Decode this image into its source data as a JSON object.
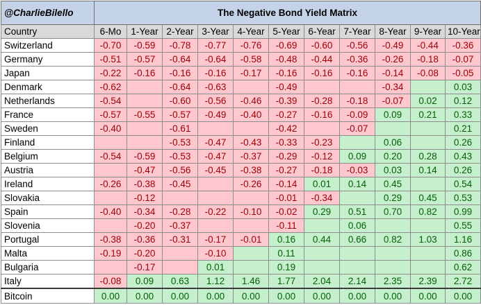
{
  "handle": "@CharlieBilello",
  "title": "The Negative Bond Yield Matrix",
  "colors": {
    "title_band": "#c5d3e8",
    "header_band": "#d9d9d9",
    "negative_fill": "#ffc7ce",
    "negative_text": "#9c0006",
    "positive_fill": "#c6efce",
    "positive_text": "#006100"
  },
  "columns": [
    "Country",
    "6-Mo",
    "1-Year",
    "2-Year",
    "3-Year",
    "4-Year",
    "5-Year",
    "6-Year",
    "7-Year",
    "8-Year",
    "9-Year",
    "10-Year"
  ],
  "rows": [
    {
      "country": "Switzerland",
      "values": [
        "-0.70",
        "-0.59",
        "-0.78",
        "-0.77",
        "-0.76",
        "-0.69",
        "-0.60",
        "-0.56",
        "-0.49",
        "-0.44",
        "-0.36"
      ],
      "fill": [
        "n",
        "n",
        "n",
        "n",
        "n",
        "n",
        "n",
        "n",
        "n",
        "n",
        "n"
      ]
    },
    {
      "country": "Germany",
      "values": [
        "-0.51",
        "-0.57",
        "-0.64",
        "-0.64",
        "-0.58",
        "-0.48",
        "-0.44",
        "-0.36",
        "-0.26",
        "-0.18",
        "-0.07"
      ],
      "fill": [
        "n",
        "n",
        "n",
        "n",
        "n",
        "n",
        "n",
        "n",
        "n",
        "n",
        "n"
      ]
    },
    {
      "country": "Japan",
      "values": [
        "-0.22",
        "-0.16",
        "-0.16",
        "-0.16",
        "-0.17",
        "-0.16",
        "-0.16",
        "-0.16",
        "-0.14",
        "-0.08",
        "-0.05"
      ],
      "fill": [
        "n",
        "n",
        "n",
        "n",
        "n",
        "n",
        "n",
        "n",
        "n",
        "n",
        "n"
      ]
    },
    {
      "country": "Denmark",
      "values": [
        "-0.62",
        "",
        "-0.64",
        "-0.63",
        "",
        "-0.49",
        "",
        "",
        "-0.34",
        "",
        "0.03"
      ],
      "fill": [
        "n",
        "n",
        "n",
        "n",
        "n",
        "n",
        "n",
        "n",
        "n",
        "p",
        "p"
      ]
    },
    {
      "country": "Netherlands",
      "values": [
        "-0.54",
        "",
        "-0.60",
        "-0.56",
        "-0.46",
        "-0.39",
        "-0.28",
        "-0.18",
        "-0.07",
        "0.02",
        "0.12"
      ],
      "fill": [
        "n",
        "n",
        "n",
        "n",
        "n",
        "n",
        "n",
        "n",
        "n",
        "p",
        "p"
      ]
    },
    {
      "country": "France",
      "values": [
        "-0.57",
        "-0.55",
        "-0.57",
        "-0.49",
        "-0.40",
        "-0.27",
        "-0.16",
        "-0.09",
        "0.09",
        "0.21",
        "0.33"
      ],
      "fill": [
        "n",
        "n",
        "n",
        "n",
        "n",
        "n",
        "n",
        "n",
        "p",
        "p",
        "p"
      ]
    },
    {
      "country": "Sweden",
      "values": [
        "-0.40",
        "",
        "-0.61",
        "",
        "",
        "-0.42",
        "",
        "-0.07",
        "",
        "",
        "0.21"
      ],
      "fill": [
        "n",
        "n",
        "n",
        "n",
        "n",
        "n",
        "n",
        "n",
        "p",
        "p",
        "p"
      ]
    },
    {
      "country": "Finland",
      "values": [
        "",
        "",
        "-0.53",
        "-0.47",
        "-0.43",
        "-0.33",
        "-0.23",
        "",
        "0.06",
        "",
        "0.26"
      ],
      "fill": [
        "n",
        "n",
        "n",
        "n",
        "n",
        "n",
        "n",
        "p",
        "p",
        "p",
        "p"
      ]
    },
    {
      "country": "Belgium",
      "values": [
        "-0.54",
        "-0.59",
        "-0.53",
        "-0.47",
        "-0.37",
        "-0.29",
        "-0.12",
        "0.09",
        "0.20",
        "0.28",
        "0.43"
      ],
      "fill": [
        "n",
        "n",
        "n",
        "n",
        "n",
        "n",
        "n",
        "p",
        "p",
        "p",
        "p"
      ]
    },
    {
      "country": "Austria",
      "values": [
        "",
        "-0.47",
        "-0.56",
        "-0.45",
        "-0.38",
        "-0.27",
        "-0.18",
        "-0.03",
        "0.03",
        "0.14",
        "0.26"
      ],
      "fill": [
        "n",
        "n",
        "n",
        "n",
        "n",
        "n",
        "n",
        "n",
        "p",
        "p",
        "p"
      ]
    },
    {
      "country": "Ireland",
      "values": [
        "-0.26",
        "-0.38",
        "-0.45",
        "",
        "-0.26",
        "-0.14",
        "0.01",
        "0.14",
        "0.45",
        "",
        "0.54"
      ],
      "fill": [
        "n",
        "n",
        "n",
        "n",
        "n",
        "n",
        "p",
        "p",
        "p",
        "p",
        "p"
      ]
    },
    {
      "country": "Slovakia",
      "values": [
        "",
        "-0.12",
        "",
        "",
        "",
        "-0.01",
        "-0.34",
        "",
        "0.29",
        "0.45",
        "0.53"
      ],
      "fill": [
        "n",
        "n",
        "n",
        "n",
        "n",
        "n",
        "n",
        "p",
        "p",
        "p",
        "p"
      ]
    },
    {
      "country": "Spain",
      "values": [
        "-0.40",
        "-0.34",
        "-0.28",
        "-0.22",
        "-0.10",
        "-0.02",
        "0.29",
        "0.51",
        "0.70",
        "0.82",
        "0.99"
      ],
      "fill": [
        "n",
        "n",
        "n",
        "n",
        "n",
        "n",
        "p",
        "p",
        "p",
        "p",
        "p"
      ]
    },
    {
      "country": "Slovenia",
      "values": [
        "",
        "-0.20",
        "-0.37",
        "",
        "",
        "-0.11",
        "",
        "0.06",
        "",
        "",
        "0.55"
      ],
      "fill": [
        "n",
        "n",
        "n",
        "n",
        "n",
        "n",
        "p",
        "p",
        "p",
        "p",
        "p"
      ]
    },
    {
      "country": "Portugal",
      "values": [
        "-0.38",
        "-0.36",
        "-0.31",
        "-0.17",
        "-0.01",
        "0.16",
        "0.44",
        "0.66",
        "0.82",
        "1.03",
        "1.16"
      ],
      "fill": [
        "n",
        "n",
        "n",
        "n",
        "n",
        "p",
        "p",
        "p",
        "p",
        "p",
        "p"
      ]
    },
    {
      "country": "Malta",
      "values": [
        "-0.19",
        "-0.20",
        "",
        "-0.10",
        "",
        "0.11",
        "",
        "",
        "",
        "",
        "0.86"
      ],
      "fill": [
        "n",
        "n",
        "n",
        "n",
        "p",
        "p",
        "p",
        "p",
        "p",
        "p",
        "p"
      ]
    },
    {
      "country": "Bulgaria",
      "values": [
        "",
        "-0.17",
        "",
        "0.01",
        "",
        "0.19",
        "",
        "",
        "",
        "",
        "0.62"
      ],
      "fill": [
        "n",
        "n",
        "n",
        "p",
        "p",
        "p",
        "p",
        "p",
        "p",
        "p",
        "p"
      ]
    },
    {
      "country": "Italy",
      "values": [
        "-0.08",
        "0.09",
        "0.63",
        "1.12",
        "1.46",
        "1.77",
        "2.04",
        "2.14",
        "2.35",
        "2.39",
        "2.72"
      ],
      "fill": [
        "n",
        "p",
        "p",
        "p",
        "p",
        "p",
        "p",
        "p",
        "p",
        "p",
        "p"
      ]
    },
    {
      "country": "Bitcoin",
      "values": [
        "0.00",
        "0.00",
        "0.00",
        "0.00",
        "0.00",
        "0.00",
        "0.00",
        "0.00",
        "0.00",
        "0.00",
        "0.00"
      ],
      "fill": [
        "p",
        "p",
        "p",
        "p",
        "p",
        "p",
        "p",
        "p",
        "p",
        "p",
        "p"
      ]
    }
  ]
}
